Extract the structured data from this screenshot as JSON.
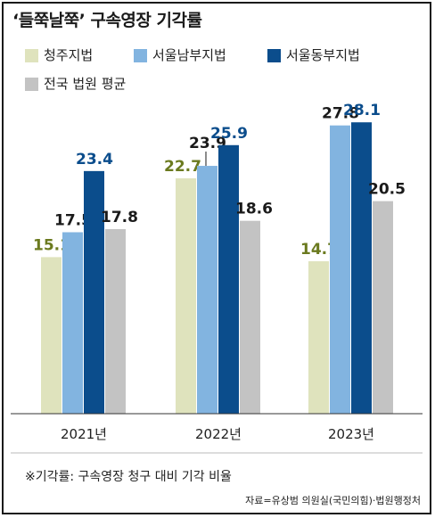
{
  "title": "‘들쭉날쭉’ 구속영장 기각률",
  "note": "※기각률: 구속영장 청구 대비 기각 비율",
  "source": "자료=유상범 의원실(국민의힘)·법원행정처",
  "chart_data": {
    "type": "bar",
    "title": "‘들쭉날쭉’ 구속영장 기각률",
    "categories": [
      "2021년",
      "2022년",
      "2023년"
    ],
    "series": [
      {
        "name": "청주지법",
        "values": [
          15.1,
          22.7,
          14.7
        ],
        "color": "#dfe3bd",
        "label_color": "#6b7a1f"
      },
      {
        "name": "서울남부지법",
        "values": [
          17.5,
          23.9,
          27.8
        ],
        "color": "#82b4e0",
        "label_color": "#1a1a1a"
      },
      {
        "name": "서울동부지법",
        "values": [
          23.4,
          25.9,
          28.1
        ],
        "color": "#0b4d8c",
        "label_color": "#0b4d8c"
      },
      {
        "name": "전국 법원 평균",
        "values": [
          17.8,
          18.6,
          20.5
        ],
        "color": "#c3c3c3",
        "label_color": "#1a1a1a"
      }
    ],
    "ylim": [
      0,
      30
    ],
    "grid": false,
    "legend_position": "top"
  }
}
